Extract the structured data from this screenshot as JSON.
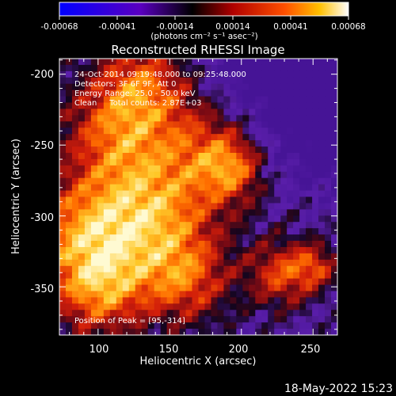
{
  "colorbar": {
    "ticks": [
      "-0.00068",
      "-0.00041",
      "-0.00014",
      "0.00014",
      "0.00041",
      "0.00068"
    ],
    "unit_label": "(photons cm⁻² s⁻¹ asec⁻²)",
    "colors": [
      "#0000ff",
      "#5a00c0",
      "#000000",
      "#b00000",
      "#ff5000",
      "#ffc000",
      "#ffffff"
    ]
  },
  "chart_data": {
    "type": "heatmap",
    "title": "Reconstructed RHESSI Image",
    "xlabel": "Heliocentric X (arcsec)",
    "ylabel": "Heliocentric Y (arcsec)",
    "xlim": [
      73,
      267
    ],
    "ylim": [
      -384,
      -189
    ],
    "x_ticks": [
      100,
      150,
      200,
      250
    ],
    "y_ticks": [
      -200,
      -250,
      -300,
      -350
    ],
    "peak_position": [
      95,
      -314
    ],
    "annotations": [
      "24-Oct-2014 09:19:48.000 to 09:25:48.000",
      "Detectors: 3F 6F 9F, Att 0",
      "Energy Range: 25.0 - 50.0 keV",
      "Clean     Total counts: 2.87E+03"
    ],
    "peak_label": "Position of Peak = [95,-314]"
  },
  "timestamp": "18-May-2022 15:23"
}
